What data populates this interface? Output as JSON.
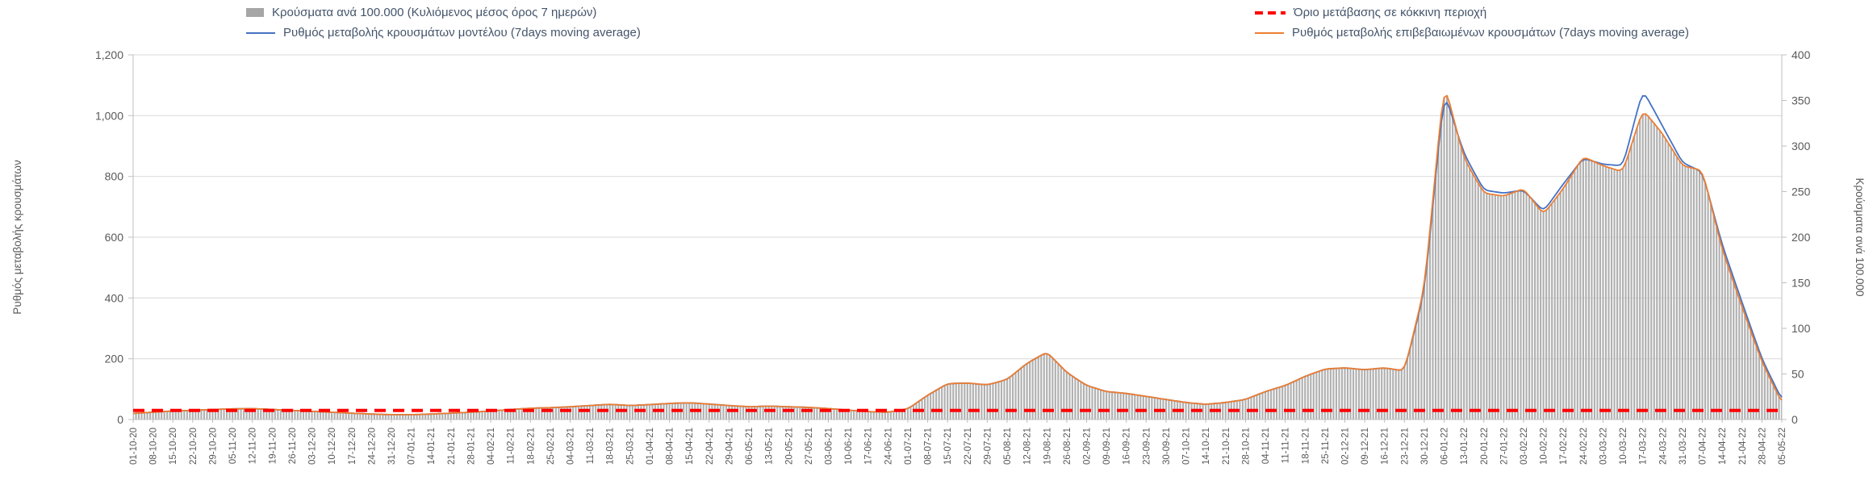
{
  "colors": {
    "bars": "#b1b1b1",
    "model": "#4472c4",
    "confirmed": "#ed7d31",
    "threshold": "#ff0000",
    "grid": "#d9d9d9",
    "axis": "#bfbfbf",
    "text": "#595959",
    "legend_text": "#44546a",
    "background": "#ffffff"
  },
  "chart_data": {
    "type": "combo",
    "legend_position": "top",
    "grid": "horizontal",
    "x": [
      "01-10-20",
      "08-10-20",
      "15-10-20",
      "22-10-20",
      "29-10-20",
      "05-11-20",
      "12-11-20",
      "19-11-20",
      "26-11-20",
      "03-12-20",
      "10-12-20",
      "17-12-20",
      "24-12-20",
      "31-12-20",
      "07-01-21",
      "14-01-21",
      "21-01-21",
      "28-01-21",
      "04-02-21",
      "11-02-21",
      "18-02-21",
      "25-02-21",
      "04-03-21",
      "11-03-21",
      "18-03-21",
      "25-03-21",
      "01-04-21",
      "08-04-21",
      "15-04-21",
      "22-04-21",
      "29-04-21",
      "06-05-21",
      "13-05-21",
      "20-05-21",
      "27-05-21",
      "03-06-21",
      "10-06-21",
      "17-06-21",
      "24-06-21",
      "01-07-21",
      "08-07-21",
      "15-07-21",
      "22-07-21",
      "29-07-21",
      "05-08-21",
      "12-08-21",
      "19-08-21",
      "26-08-21",
      "02-09-21",
      "09-09-21",
      "16-09-21",
      "23-09-21",
      "30-09-21",
      "07-10-21",
      "14-10-21",
      "21-10-21",
      "28-10-21",
      "04-11-21",
      "11-11-21",
      "18-11-21",
      "25-11-21",
      "02-12-21",
      "09-12-21",
      "16-12-21",
      "23-12-21",
      "30-12-21",
      "06-01-22",
      "13-01-22",
      "20-01-22",
      "27-01-22",
      "03-02-22",
      "10-02-22",
      "17-02-22",
      "24-02-22",
      "03-03-22",
      "10-03-22",
      "17-03-22",
      "24-03-22",
      "31-03-22",
      "07-04-22",
      "14-04-22",
      "21-04-22",
      "28-04-22",
      "05-05-22"
    ],
    "series": [
      {
        "id": "bars",
        "name": "Κρούσματα ανά 100.000 (Κυλιόμενος μέσος όρος 7 ημερών)",
        "type": "bar",
        "axis": "right",
        "color": "#b1b1b1",
        "values": [
          7,
          8,
          9,
          10,
          11,
          12,
          12,
          11,
          10,
          9,
          8,
          7,
          6,
          5,
          5,
          6,
          7,
          8,
          9,
          11,
          12,
          13,
          14,
          15,
          17,
          15,
          16,
          18,
          18,
          17,
          15,
          14,
          15,
          14,
          13,
          12,
          10,
          9,
          8,
          12,
          27,
          39,
          40,
          38,
          44,
          62,
          74,
          52,
          37,
          31,
          29,
          25,
          22,
          19,
          17,
          19,
          22,
          31,
          37,
          47,
          55,
          57,
          55,
          57,
          53,
          143,
          370,
          287,
          248,
          245,
          253,
          225,
          253,
          288,
          278,
          272,
          340,
          313,
          278,
          273,
          187,
          123,
          63,
          18
        ]
      },
      {
        "id": "model",
        "name": "Ρυθμός μεταβολής κρουσμάτων μοντέλου (7days moving average)",
        "type": "line",
        "axis": "left",
        "color": "#4472c4",
        "values": [
          20,
          24,
          28,
          30,
          33,
          35,
          36,
          33,
          30,
          27,
          24,
          21,
          18,
          16,
          16,
          18,
          21,
          24,
          28,
          33,
          37,
          39,
          42,
          46,
          50,
          46,
          49,
          53,
          55,
          51,
          46,
          42,
          44,
          42,
          40,
          36,
          31,
          26,
          24,
          35,
          80,
          118,
          120,
          114,
          132,
          185,
          222,
          155,
          112,
          92,
          86,
          76,
          66,
          56,
          50,
          56,
          66,
          92,
          112,
          142,
          166,
          170,
          164,
          170,
          160,
          420,
          1080,
          875,
          755,
          745,
          755,
          685,
          775,
          860,
          840,
          835,
          1085,
          965,
          845,
          815,
          575,
          385,
          200,
          65
        ]
      },
      {
        "id": "confirmed",
        "name": "Ρυθμός μεταβολής επιβεβαιωμένων κρουσμάτων (7days moving average)",
        "type": "line",
        "axis": "left",
        "color": "#ed7d31",
        "values": [
          20,
          24,
          28,
          30,
          33,
          35,
          36,
          33,
          30,
          27,
          24,
          21,
          18,
          16,
          16,
          18,
          21,
          24,
          28,
          33,
          37,
          39,
          42,
          46,
          50,
          46,
          49,
          53,
          55,
          51,
          46,
          42,
          44,
          42,
          40,
          36,
          31,
          26,
          24,
          35,
          80,
          118,
          120,
          114,
          132,
          185,
          222,
          155,
          112,
          92,
          86,
          76,
          66,
          56,
          50,
          56,
          66,
          92,
          112,
          142,
          166,
          170,
          164,
          170,
          160,
          430,
          1110,
          860,
          745,
          735,
          760,
          675,
          760,
          865,
          835,
          815,
          1020,
          940,
          835,
          820,
          560,
          370,
          190,
          55
        ]
      },
      {
        "id": "threshold",
        "name": "Όριο μετάβασης σε κόκκινη περιοχή",
        "type": "constant-dashed-line",
        "axis": "left",
        "color": "#ff0000",
        "value": 30
      }
    ],
    "left_axis": {
      "label": "Ρυθμός μεταβολής κρουσμάτων",
      "min": 0,
      "max": 1200,
      "ticks": [
        0,
        200,
        400,
        600,
        800,
        1000,
        1200
      ],
      "tick_labels": [
        "0",
        "200",
        "400",
        "600",
        "800",
        "1,000",
        "1,200"
      ]
    },
    "right_axis": {
      "label": "Κρούσματα ανά 100.000",
      "min": 0,
      "max": 400,
      "ticks": [
        0,
        50,
        100,
        150,
        200,
        250,
        300,
        350,
        400
      ],
      "tick_labels": [
        "0",
        "50",
        "100",
        "150",
        "200",
        "250",
        "300",
        "350",
        "400"
      ]
    }
  }
}
